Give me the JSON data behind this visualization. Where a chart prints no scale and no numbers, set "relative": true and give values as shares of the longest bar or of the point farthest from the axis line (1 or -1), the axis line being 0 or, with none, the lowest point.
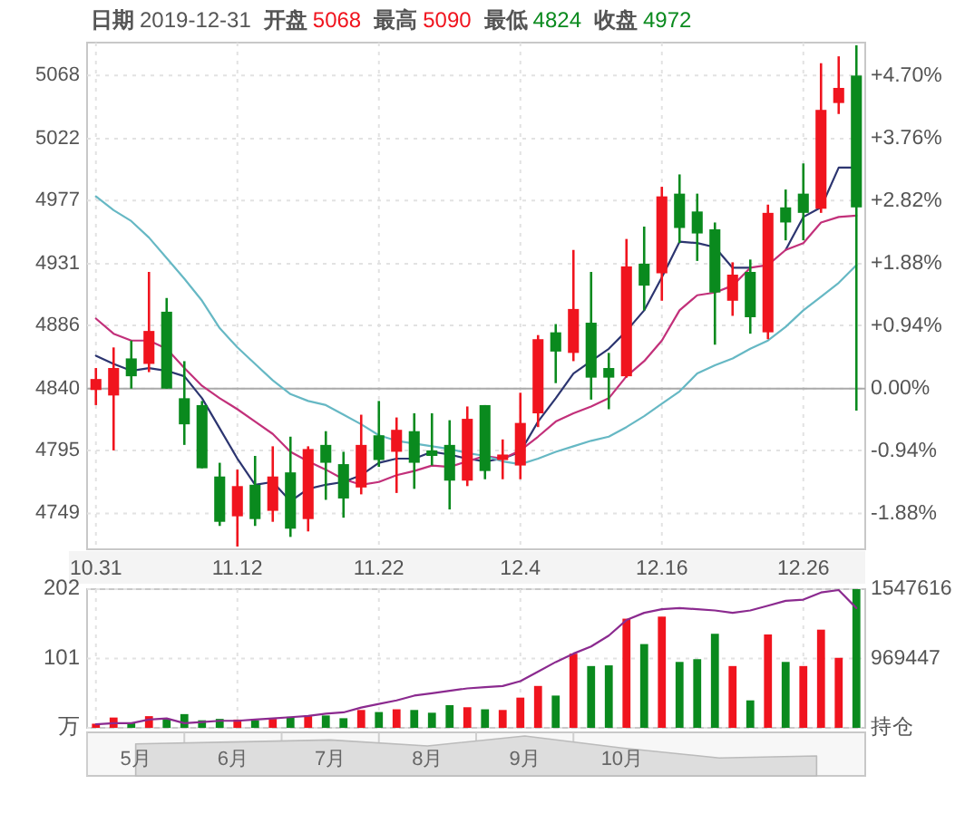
{
  "chart_data": [
    {
      "type": "candlestick",
      "title": "日期 2019-12-31 开盘 5068 最高 5090 最低 4824 收盘 4972",
      "categories": [
        "10.31",
        null,
        null,
        null,
        null,
        null,
        null,
        null,
        "11.12",
        null,
        null,
        null,
        null,
        null,
        null,
        null,
        "11.22",
        null,
        null,
        null,
        null,
        null,
        null,
        null,
        "12.4",
        null,
        null,
        null,
        null,
        null,
        null,
        null,
        "12.16",
        null,
        null,
        null,
        null,
        null,
        null,
        null,
        "12.26",
        null,
        null,
        null
      ],
      "ohlc": [
        [
          4839,
          4855,
          4828,
          4847
        ],
        [
          4835,
          4870,
          4795,
          4855
        ],
        [
          4862,
          4875,
          4840,
          4849
        ],
        [
          4858,
          4925,
          4852,
          4882
        ],
        [
          4896,
          4906,
          4840,
          4840
        ],
        [
          4833,
          4860,
          4799,
          4814
        ],
        [
          4828,
          4831,
          4782,
          4782
        ],
        [
          4776,
          4786,
          4740,
          4743
        ],
        [
          4747,
          4781,
          4725,
          4769
        ],
        [
          4770,
          4791,
          4740,
          4745
        ],
        [
          4751,
          4798,
          4743,
          4776
        ],
        [
          4779,
          4805,
          4732,
          4738
        ],
        [
          4745,
          4798,
          4736,
          4796
        ],
        [
          4799,
          4809,
          4759,
          4786
        ],
        [
          4785,
          4794,
          4746,
          4760
        ],
        [
          4768,
          4821,
          4763,
          4799
        ],
        [
          4806,
          4831,
          4783,
          4788
        ],
        [
          4794,
          4819,
          4764,
          4810
        ],
        [
          4809,
          4822,
          4767,
          4786
        ],
        [
          4795,
          4822,
          4784,
          4791
        ],
        [
          4799,
          4817,
          4752,
          4773
        ],
        [
          4773,
          4827,
          4769,
          4818
        ],
        [
          4828,
          4828,
          4774,
          4780
        ],
        [
          4788,
          4803,
          4774,
          4792
        ],
        [
          4784,
          4837,
          4774,
          4815
        ],
        [
          4822,
          4879,
          4812,
          4876
        ],
        [
          4881,
          4887,
          4844,
          4867
        ],
        [
          4866,
          4941,
          4860,
          4898
        ],
        [
          4888,
          4925,
          4832,
          4848
        ],
        [
          4855,
          4866,
          4825,
          4848
        ],
        [
          4849,
          4949,
          4848,
          4929
        ],
        [
          4931,
          4958,
          4897,
          4915
        ],
        [
          4924,
          4987,
          4904,
          4980
        ],
        [
          4982,
          4996,
          4946,
          4957
        ],
        [
          4969,
          4982,
          4933,
          4953
        ],
        [
          4956,
          4961,
          4872,
          4910
        ],
        [
          4904,
          4932,
          4893,
          4923
        ],
        [
          4925,
          4934,
          4880,
          4892
        ],
        [
          4881,
          4974,
          4876,
          4968
        ],
        [
          4972,
          4985,
          4948,
          4961
        ],
        [
          4982,
          5004,
          4948,
          4968
        ],
        [
          4971,
          5077,
          4968,
          5043
        ],
        [
          5048,
          5082,
          5040,
          5059
        ],
        [
          5068,
          5090,
          4824,
          4972
        ]
      ],
      "colors": [
        "#f0141e",
        "#f0141e",
        "#0a8a1e",
        "#f0141e",
        "#0a8a1e",
        "#0a8a1e",
        "#0a8a1e",
        "#0a8a1e",
        "#f0141e",
        "#0a8a1e",
        "#f0141e",
        "#0a8a1e",
        "#f0141e",
        "#0a8a1e",
        "#0a8a1e",
        "#f0141e",
        "#0a8a1e",
        "#f0141e",
        "#0a8a1e",
        "#0a8a1e",
        "#0a8a1e",
        "#f0141e",
        "#0a8a1e",
        "#f0141e",
        "#f0141e",
        "#f0141e",
        "#0a8a1e",
        "#f0141e",
        "#0a8a1e",
        "#0a8a1e",
        "#f0141e",
        "#0a8a1e",
        "#f0141e",
        "#0a8a1e",
        "#0a8a1e",
        "#0a8a1e",
        "#f0141e",
        "#0a8a1e",
        "#f0141e",
        "#0a8a1e",
        "#0a8a1e",
        "#f0141e",
        "#f0141e",
        "#0a8a1e"
      ],
      "series": [
        {
          "type": "line",
          "color": "#2c3570",
          "values": [
            4864,
            4858,
            4853,
            4855,
            4853,
            4849,
            4833,
            4811,
            4789,
            4770,
            4772,
            4758,
            4767,
            4770,
            4772,
            4777,
            4786,
            4789,
            4789,
            4794,
            4792,
            4789,
            4787,
            4789,
            4794,
            4816,
            4833,
            4851,
            4860,
            4869,
            4882,
            4897,
            4921,
            4947,
            4946,
            4943,
            4928,
            4928,
            null,
            4941,
            4965,
            4972,
            5001,
            5001
          ]
        },
        {
          "type": "line",
          "color": "#c2307a",
          "values": [
            4891,
            4880,
            4875,
            4875,
            4869,
            4855,
            4842,
            4833,
            4825,
            4816,
            4807,
            4794,
            4787,
            4781,
            4774,
            4770,
            4772,
            4777,
            4780,
            4784,
            4783,
            4787,
            4791,
            4789,
            4795,
            4805,
            4816,
            4822,
            4827,
            4833,
            4849,
            4860,
            4875,
            4897,
            4908,
            4910,
            4915,
            4928,
            4930,
            4941,
            4946,
            4961,
            4965,
            4966
          ]
        },
        {
          "type": "line",
          "color": "#66b8c4",
          "values": [
            4980,
            4970,
            4962,
            4950,
            4935,
            4920,
            4904,
            4884,
            4870,
            4858,
            4846,
            4836,
            4831,
            4828,
            4821,
            4814,
            4806,
            4802,
            4800,
            4798,
            4796,
            4793,
            4791,
            4787,
            4785,
            4789,
            4794,
            4798,
            4802,
            4805,
            4812,
            4820,
            4829,
            4838,
            4851,
            4857,
            4862,
            4869,
            4875,
            4885,
            4897,
            4907,
            4917,
            4930
          ]
        }
      ],
      "ylim": [
        4723,
        5092
      ],
      "yticks": [
        4749,
        4795,
        4840,
        4886,
        4931,
        4977,
        5022,
        5068
      ],
      "y2lim": [
        -2.42,
        5.21
      ],
      "y2ticks": [
        {
          "value": -1.88,
          "label": "-1.88%"
        },
        {
          "value": -0.94,
          "label": "-0.94%"
        },
        {
          "value": 0,
          "label": "0.00%"
        },
        {
          "value": 0.94,
          "label": "+0.94%"
        },
        {
          "value": 1.88,
          "label": "+1.88%"
        },
        {
          "value": 2.82,
          "label": "+2.82%"
        },
        {
          "value": 3.76,
          "label": "+3.76%"
        },
        {
          "value": 4.7,
          "label": "+4.70%"
        }
      ],
      "ref_lines": [
        {
          "axis": "y",
          "value": 4840,
          "color": "#aaaaaa"
        }
      ],
      "grid": true
    },
    {
      "type": "bar",
      "categories": [
        "10.31",
        null,
        null,
        null,
        null,
        null,
        null,
        null,
        "11.12",
        null,
        null,
        null,
        null,
        null,
        null,
        null,
        "11.22",
        null,
        null,
        null,
        null,
        null,
        null,
        null,
        "12.4",
        null,
        null,
        null,
        null,
        null,
        null,
        null,
        "12.16",
        null,
        null,
        null,
        null,
        null,
        null,
        null,
        "12.26",
        null,
        null,
        null
      ],
      "series": [
        {
          "type": "bar",
          "values": [
            6,
            15,
            7,
            17,
            13,
            20,
            11,
            13,
            12,
            11,
            13,
            16,
            17,
            18,
            14,
            26,
            23,
            27,
            26,
            22,
            33,
            30,
            27,
            26,
            44,
            61,
            47,
            108,
            90,
            91,
            159,
            122,
            162,
            96,
            100,
            137,
            90,
            40,
            136,
            96,
            90,
            143,
            102,
            202
          ],
          "colors": [
            "#f0141e",
            "#f0141e",
            "#0a8a1e",
            "#f0141e",
            "#0a8a1e",
            "#0a8a1e",
            "#0a8a1e",
            "#0a8a1e",
            "#f0141e",
            "#0a8a1e",
            "#f0141e",
            "#0a8a1e",
            "#f0141e",
            "#0a8a1e",
            "#0a8a1e",
            "#f0141e",
            "#0a8a1e",
            "#f0141e",
            "#0a8a1e",
            "#0a8a1e",
            "#0a8a1e",
            "#f0141e",
            "#0a8a1e",
            "#f0141e",
            "#f0141e",
            "#f0141e",
            "#0a8a1e",
            "#f0141e",
            "#0a8a1e",
            "#0a8a1e",
            "#f0141e",
            "#0a8a1e",
            "#f0141e",
            "#0a8a1e",
            "#0a8a1e",
            "#0a8a1e",
            "#f0141e",
            "#0a8a1e",
            "#f0141e",
            "#0a8a1e",
            "#f0141e",
            "#f0141e",
            "#f0141e",
            "#0a8a1e"
          ]
        },
        {
          "type": "line",
          "axis": "y2",
          "color": "#8b2a8f",
          "values": [
            420000,
            430000,
            430000,
            460000,
            470000,
            430000,
            440000,
            450000,
            450000,
            460000,
            470000,
            480000,
            490000,
            510000,
            520000,
            560000,
            590000,
            620000,
            660000,
            680000,
            700000,
            720000,
            730000,
            740000,
            780000,
            860000,
            940000,
            1010000,
            1070000,
            1160000,
            1290000,
            1350000,
            1380000,
            1390000,
            1380000,
            1370000,
            1350000,
            1370000,
            1410000,
            1450000,
            1460000,
            1520000,
            1540000,
            1390000
          ]
        }
      ],
      "ylim": [
        0,
        202
      ],
      "yticks": [
        {
          "value": 0,
          "label": "万"
        },
        101,
        202
      ],
      "y2lim": [
        391278,
        1547616
      ],
      "y2ticks": [
        {
          "value": 391278,
          "label": "持仓"
        },
        969447,
        1547616
      ],
      "tick_labels": "y",
      "grid": true
    },
    {
      "type": "area",
      "relative": true,
      "categories": [
        "5月",
        "6月",
        "7月",
        "8月",
        "9月",
        "10月",
        null,
        null
      ],
      "series": [
        {
          "color": "#dddddd",
          "values": [
            0.8,
            0.85,
            0.9,
            0.75,
            1,
            0.7,
            0.45,
            0.5
          ]
        }
      ],
      "tick_labels": "x"
    }
  ]
}
